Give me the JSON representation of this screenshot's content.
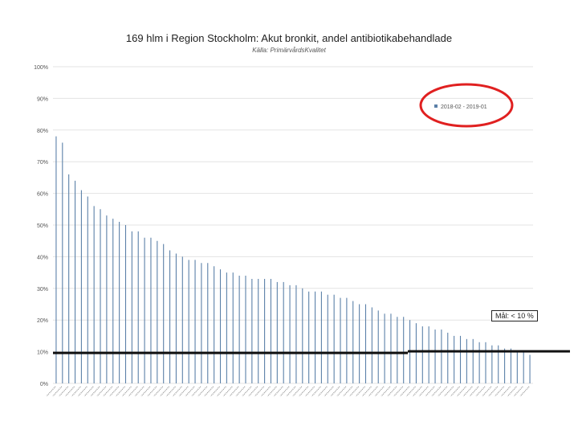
{
  "chart_data": {
    "type": "bar",
    "title": "169 hlm i Region Stockholm: Akut bronkit, andel antibiotikabehandlade",
    "subtitle": "Källa: PrimärvårdsKvalitet",
    "y_ticks": [
      "0%",
      "10%",
      "20%",
      "30%",
      "40%",
      "50%",
      "60%",
      "70%",
      "80%",
      "90%",
      "100%"
    ],
    "ylim": [
      0,
      100
    ],
    "legend": {
      "label": "2018-02 - 2019-01",
      "position": "top-right",
      "highlight_color": "#e02020"
    },
    "goal": {
      "label": "Mål: < 10 %",
      "value": 10
    },
    "series_color": "#5b80a8",
    "values": [
      78,
      76,
      66,
      64,
      61,
      59,
      56,
      55,
      53,
      52,
      51,
      50,
      48,
      48,
      46,
      46,
      45,
      44,
      42,
      41,
      40,
      39,
      39,
      38,
      38,
      37,
      36,
      35,
      35,
      34,
      34,
      33,
      33,
      33,
      33,
      32,
      32,
      31,
      31,
      30,
      29,
      29,
      29,
      28,
      28,
      27,
      27,
      26,
      25,
      25,
      24,
      23,
      22,
      22,
      21,
      21,
      20,
      19,
      18,
      18,
      17,
      17,
      16,
      15,
      15,
      14,
      14,
      13,
      13,
      12,
      12,
      11,
      11,
      10,
      10,
      9
    ]
  }
}
